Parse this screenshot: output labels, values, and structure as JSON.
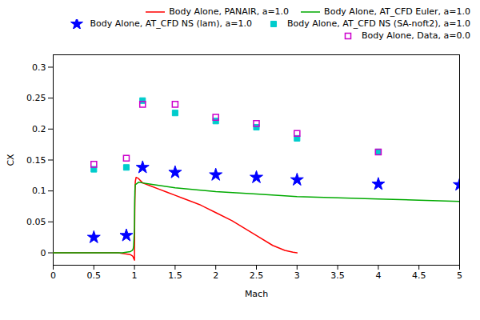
{
  "chart_data": {
    "type": "line",
    "xlabel": "Mach",
    "ylabel": "CX",
    "xlim": [
      0,
      5
    ],
    "ylim": [
      -0.02,
      0.32
    ],
    "xticks": [
      0,
      0.5,
      1.0,
      1.5,
      2.0,
      2.5,
      3.0,
      3.5,
      4.0,
      4.5,
      5.0
    ],
    "yticks": [
      0,
      0.05,
      0.1,
      0.15,
      0.2,
      0.25,
      0.3
    ],
    "grid": false,
    "legend": "upper right",
    "series": [
      {
        "name": "Body Alone, PANAIR, a=1.0",
        "type": "line",
        "line_style": "solid",
        "color": "#ff0000",
        "x": [
          0.0,
          0.2,
          0.4,
          0.6,
          0.7,
          0.8,
          0.85,
          0.9,
          0.95,
          0.975,
          0.985,
          0.99,
          1.0,
          1.002,
          1.005,
          1.01,
          1.02,
          1.05,
          1.1,
          1.2,
          1.3,
          1.4,
          1.5,
          1.6,
          1.8,
          2.0,
          2.2,
          2.5,
          2.7,
          2.85,
          2.95,
          3.0
        ],
        "values": [
          0.0,
          0.0,
          0.0,
          0.0,
          0.0,
          0.0,
          -0.001,
          -0.002,
          -0.003,
          -0.005,
          -0.007,
          -0.009,
          -0.012,
          0.04,
          0.085,
          0.115,
          0.122,
          0.12,
          0.113,
          0.108,
          0.103,
          0.098,
          0.093,
          0.088,
          0.078,
          0.065,
          0.052,
          0.028,
          0.012,
          0.004,
          0.001,
          0.0
        ]
      },
      {
        "name": "Body Alone, AT_CFD Euler, a=1.0",
        "type": "line",
        "line_style": "solid",
        "color": "#00aa00",
        "x": [
          0.0,
          0.2,
          0.4,
          0.6,
          0.7,
          0.8,
          0.85,
          0.9,
          0.95,
          0.975,
          0.985,
          0.99,
          1.0,
          1.002,
          1.005,
          1.01,
          1.05,
          1.1,
          1.2,
          1.3,
          1.5,
          2.0,
          2.5,
          3.0,
          3.5,
          4.0,
          4.5,
          5.0
        ],
        "values": [
          0.0,
          0.0,
          0.0,
          0.0,
          0.0,
          0.0,
          0.0,
          0.001,
          0.002,
          0.004,
          0.007,
          0.012,
          0.04,
          0.075,
          0.1,
          0.11,
          0.114,
          0.113,
          0.111,
          0.109,
          0.105,
          0.099,
          0.095,
          0.091,
          0.089,
          0.087,
          0.085,
          0.083
        ]
      },
      {
        "name": "Body Alone, AT_CFD NS (lam), a=1.0",
        "type": "scatter",
        "marker": "star",
        "color": "#0000ff",
        "x": [
          0.5,
          0.9,
          1.1,
          1.5,
          2.0,
          2.5,
          3.0,
          4.0,
          5.0
        ],
        "values": [
          0.025,
          0.028,
          0.138,
          0.13,
          0.126,
          0.122,
          0.118,
          0.111,
          0.11
        ]
      },
      {
        "name": "Body Alone, AT_CFD NS (SA-noft2), a=1.0",
        "type": "scatter",
        "marker": "square",
        "color": "#00cccc",
        "x": [
          0.5,
          0.9,
          1.1,
          1.5,
          2.0,
          2.5,
          3.0,
          4.0
        ],
        "values": [
          0.135,
          0.138,
          0.246,
          0.226,
          0.213,
          0.203,
          0.185,
          0.163
        ]
      },
      {
        "name": "Body Alone, Data, a=0.0",
        "type": "scatter",
        "marker": "open_square",
        "color": "#cc00cc",
        "x": [
          0.5,
          0.9,
          1.1,
          1.5,
          2.0,
          2.5,
          3.0,
          4.0
        ],
        "values": [
          0.143,
          0.153,
          0.24,
          0.24,
          0.219,
          0.209,
          0.193,
          0.163
        ]
      }
    ]
  }
}
